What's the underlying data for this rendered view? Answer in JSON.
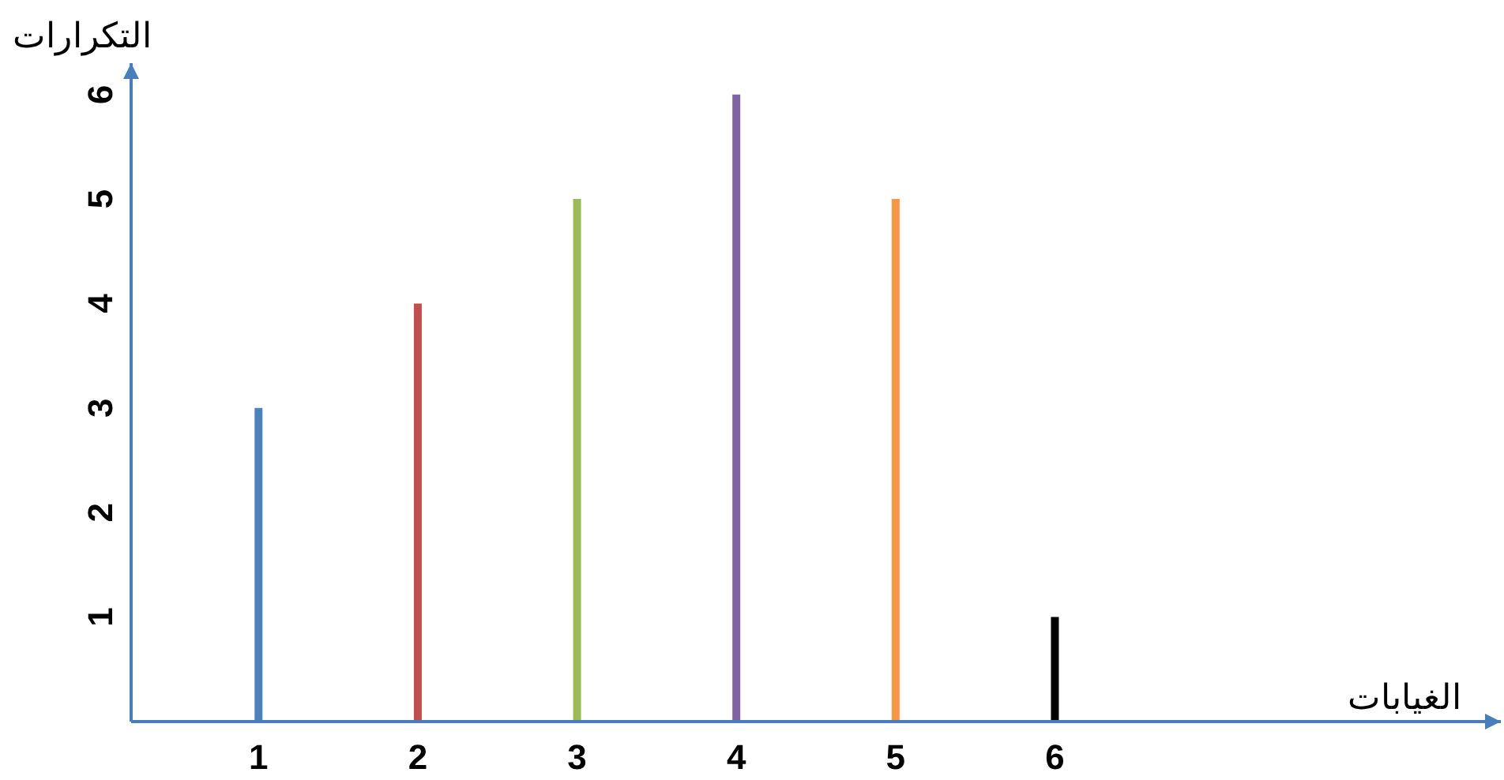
{
  "chart_data": {
    "type": "bar",
    "xlabel": "الغيابات",
    "ylabel": "التكرارات",
    "x": [
      1,
      2,
      3,
      4,
      5,
      6
    ],
    "values": [
      3,
      4,
      5,
      6,
      5,
      1
    ],
    "colors": [
      "#4f81bd",
      "#c0504d",
      "#9bbb59",
      "#8064a2",
      "#f79646",
      "#000000"
    ],
    "xlim": [
      0.2,
      8.8
    ],
    "ylim": [
      0,
      6.3
    ],
    "xticks": [
      1,
      2,
      3,
      4,
      5,
      6
    ],
    "yticks": [
      1,
      2,
      3,
      4,
      5,
      6
    ],
    "grid": false
  }
}
